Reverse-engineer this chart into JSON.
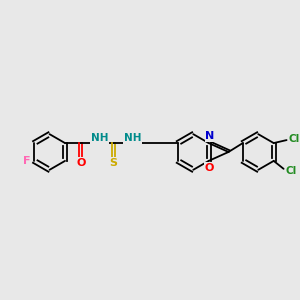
{
  "background_color": "#e8e8e8",
  "colors": {
    "F": "#ff69b4",
    "O": "#ff0000",
    "N": "#0000cd",
    "S": "#ccaa00",
    "Cl": "#228B22",
    "bond": "#000000",
    "NH": "#008b8b"
  },
  "figsize": [
    3.0,
    3.0
  ],
  "dpi": 100
}
